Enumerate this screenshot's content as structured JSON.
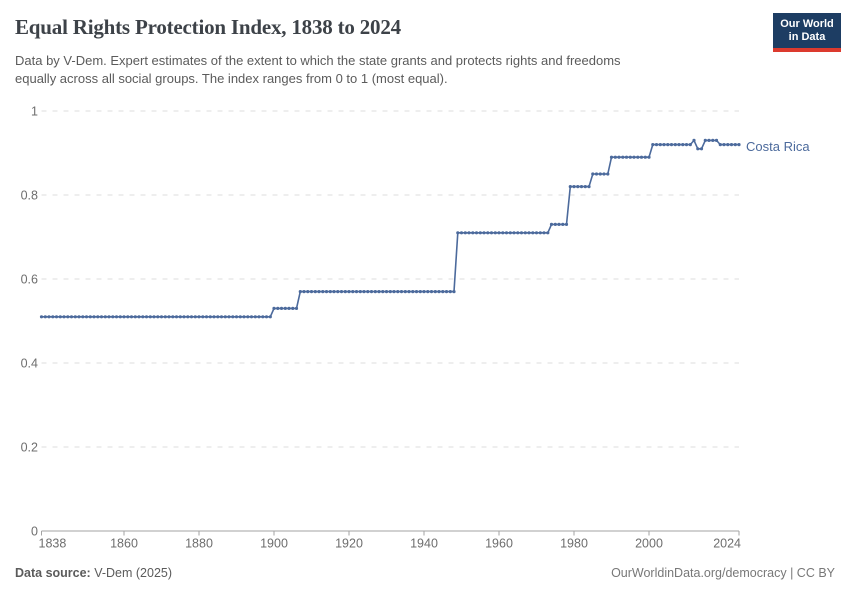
{
  "header": {
    "title": "Equal Rights Protection Index, 1838 to 2024",
    "subtitle_lines": [
      "Data by V-Dem. Expert estimates of the extent to which the state grants and protects rights and freedoms",
      "equally across all social groups. The index ranges from 0 to 1 (most equal)."
    ],
    "logo": {
      "line1": "Our World",
      "line2": "in Data",
      "bg_color": "#1d3d63",
      "accent_color": "#dc3a2e"
    }
  },
  "chart_data": {
    "type": "line",
    "title": "Equal Rights Protection Index, 1838 to 2024",
    "xlabel": "",
    "ylabel": "",
    "x_range": [
      1838,
      2024
    ],
    "ylim": [
      0,
      1
    ],
    "y_ticks": [
      0,
      0.2,
      0.4,
      0.6,
      0.8,
      1
    ],
    "y_tick_labels": [
      "0",
      "0.2",
      "0.4",
      "0.6",
      "0.8",
      "1"
    ],
    "x_ticks": [
      1838,
      1860,
      1880,
      1900,
      1920,
      1940,
      1960,
      1980,
      2000,
      2024
    ],
    "grid": "horizontal-dashed",
    "legend_position": "end-of-line label",
    "marker": "dot-per-year",
    "series": [
      {
        "name": "Costa Rica",
        "color": "#4c6a9c",
        "segments": [
          {
            "from": 1838,
            "to": 1899,
            "value": 0.51
          },
          {
            "from": 1900,
            "to": 1906,
            "value": 0.53
          },
          {
            "from": 1907,
            "to": 1948,
            "value": 0.57
          },
          {
            "from": 1949,
            "to": 1973,
            "value": 0.71
          },
          {
            "from": 1974,
            "to": 1978,
            "value": 0.73
          },
          {
            "from": 1979,
            "to": 1984,
            "value": 0.82
          },
          {
            "from": 1985,
            "to": 1989,
            "value": 0.85
          },
          {
            "from": 1990,
            "to": 2000,
            "value": 0.89
          },
          {
            "from": 2001,
            "to": 2011,
            "value": 0.92
          },
          {
            "from": 2012,
            "to": 2012,
            "value": 0.93
          },
          {
            "from": 2013,
            "to": 2014,
            "value": 0.91
          },
          {
            "from": 2015,
            "to": 2018,
            "value": 0.93
          },
          {
            "from": 2019,
            "to": 2024,
            "value": 0.92
          }
        ]
      }
    ]
  },
  "footer": {
    "data_source_label": "Data source:",
    "data_source_value": " V-Dem (2025)",
    "attribution": "OurWorldinData.org/democracy | CC BY"
  },
  "colors": {
    "line": "#4c6a9c",
    "gridline": "#dedede",
    "axis": "#a3a3a3",
    "tick_text": "#6e6e6e",
    "title_text": "#3d4248",
    "subtitle_text": "#5b5b5b"
  }
}
